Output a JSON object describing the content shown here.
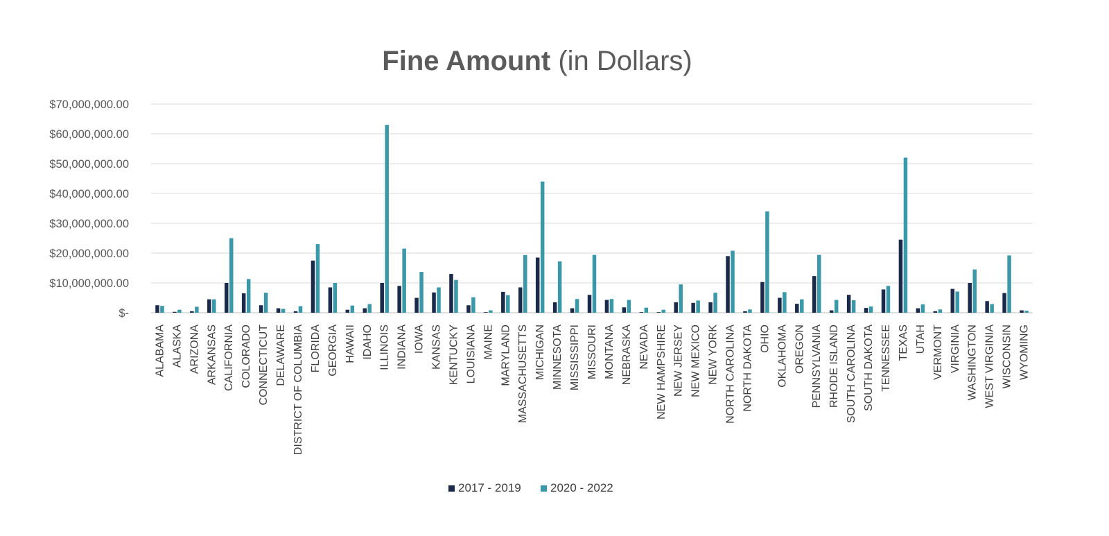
{
  "chart_data": {
    "type": "bar",
    "title": "Fine Amount",
    "title_suffix": "(in Dollars)",
    "xlabel": "",
    "ylabel": "",
    "ylim": [
      0,
      70000000
    ],
    "yticks": [
      {
        "value": 0,
        "label": "$-"
      },
      {
        "value": 10000000,
        "label": "$10,000,000.00"
      },
      {
        "value": 20000000,
        "label": "$20,000,000.00"
      },
      {
        "value": 30000000,
        "label": "$30,000,000.00"
      },
      {
        "value": 40000000,
        "label": "$40,000,000.00"
      },
      {
        "value": 50000000,
        "label": "$50,000,000.00"
      },
      {
        "value": 60000000,
        "label": "$60,000,000.00"
      },
      {
        "value": 70000000,
        "label": "$70,000,000.00"
      }
    ],
    "grid": true,
    "legend_position": "bottom",
    "categories": [
      "ALABAMA",
      "ALASKA",
      "ARIZONA",
      "ARKANSAS",
      "CALIFORNIA",
      "COLORADO",
      "CONNECTICUT",
      "DELAWARE",
      "DISTRICT OF COLUMBIA",
      "FLORIDA",
      "GEORGIA",
      "HAWAII",
      "IDAHO",
      "ILLINOIS",
      "INDIANA",
      "IOWA",
      "KANSAS",
      "KENTUCKY",
      "LOUISIANA",
      "MAINE",
      "MARYLAND",
      "MASSACHUSETTS",
      "MICHIGAN",
      "MINNESOTA",
      "MISSISSIPPI",
      "MISSOURI",
      "MONTANA",
      "NEBRASKA",
      "NEVADA",
      "NEW HAMPSHIRE",
      "NEW JERSEY",
      "NEW MEXICO",
      "NEW YORK",
      "NORTH CAROLINA",
      "NORTH DAKOTA",
      "OHIO",
      "OKLAHOMA",
      "OREGON",
      "PENNSYLVANIA",
      "RHODE ISLAND",
      "SOUTH CAROLINA",
      "SOUTH DAKOTA",
      "TENNESSEE",
      "TEXAS",
      "UTAH",
      "VERMONT",
      "VIRGINIA",
      "WASHINGTON",
      "WEST VIRGINIA",
      "WISCONSIN",
      "WYOMING"
    ],
    "series": [
      {
        "name": "2017 - 2019",
        "color": "#1b2a4a",
        "values": [
          2500000,
          300000,
          500000,
          4500000,
          10000000,
          6500000,
          2500000,
          1500000,
          500000,
          17500000,
          8500000,
          1000000,
          1500000,
          10000000,
          9000000,
          5000000,
          6800000,
          13000000,
          2500000,
          200000,
          7000000,
          8500000,
          18500000,
          3500000,
          1500000,
          6000000,
          4300000,
          1800000,
          200000,
          200000,
          3500000,
          3300000,
          3500000,
          19000000,
          500000,
          10300000,
          5000000,
          3000000,
          12300000,
          800000,
          6000000,
          1600000,
          7800000,
          24500000,
          1500000,
          500000,
          8000000,
          10000000,
          3900000,
          6600000,
          800000
        ]
      },
      {
        "name": "2020 - 2022",
        "color": "#3a98a8",
        "values": [
          2300000,
          1000000,
          2000000,
          4500000,
          25000000,
          11300000,
          6700000,
          1300000,
          2200000,
          23000000,
          10000000,
          2400000,
          2900000,
          63000000,
          21500000,
          13700000,
          8500000,
          11000000,
          5200000,
          800000,
          5900000,
          19300000,
          44000000,
          17200000,
          4600000,
          19400000,
          4600000,
          4300000,
          1700000,
          1000000,
          9500000,
          4100000,
          6700000,
          20800000,
          1100000,
          34000000,
          6900000,
          4500000,
          19400000,
          4300000,
          4200000,
          2100000,
          9000000,
          52000000,
          2800000,
          1100000,
          7100000,
          14500000,
          2900000,
          19200000,
          700000
        ]
      }
    ]
  }
}
